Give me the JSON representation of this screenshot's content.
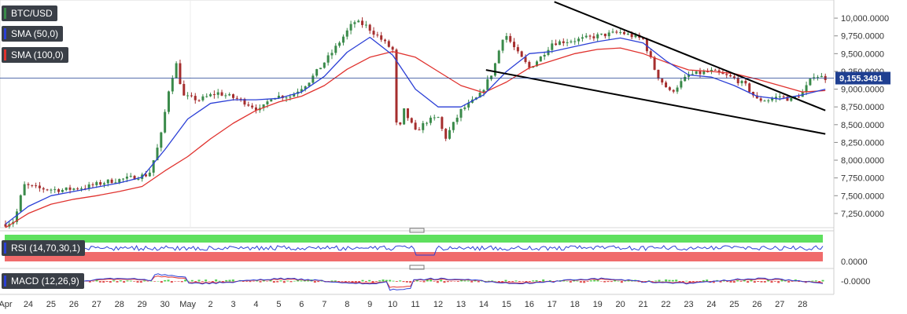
{
  "chart_data": {
    "type": "candlestick",
    "symbol": "BTC/USD",
    "current_price": "9,155.3491",
    "y_ticks": [
      "10,000.0000",
      "9,750.0000",
      "9,500.0000",
      "9,250.0000",
      "9,000.0000",
      "8,750.0000",
      "8,500.0000",
      "8,250.0000",
      "8,000.0000",
      "7,750.0000",
      "7,500.0000",
      "7,250.0000"
    ],
    "y_tick_values": [
      10000,
      9750,
      9500,
      9250,
      9000,
      8750,
      8500,
      8250,
      8000,
      7750,
      7500,
      7250
    ],
    "ylim": [
      7050,
      10200
    ],
    "x_ticks": [
      "Apr",
      "24",
      "25",
      "26",
      "27",
      "28",
      "29",
      "30",
      "May",
      "2",
      "3",
      "4",
      "5",
      "6",
      "7",
      "8",
      "9",
      "10",
      "11",
      "12",
      "13",
      "14",
      "15",
      "16",
      "17",
      "18",
      "19",
      "20",
      "21",
      "22",
      "23",
      "24",
      "25",
      "26",
      "27",
      "28"
    ],
    "price_path": [
      [
        0,
        7100
      ],
      [
        0.4,
        7150
      ],
      [
        0.8,
        7650
      ],
      [
        1.5,
        7600
      ],
      [
        2.5,
        7580
      ],
      [
        3.5,
        7620
      ],
      [
        4.5,
        7700
      ],
      [
        5.5,
        7750
      ],
      [
        6.3,
        7800
      ],
      [
        6.8,
        8300
      ],
      [
        7.2,
        9050
      ],
      [
        7.5,
        9350
      ],
      [
        7.8,
        8900
      ],
      [
        8.5,
        8850
      ],
      [
        9.3,
        8950
      ],
      [
        10.3,
        8850
      ],
      [
        11.2,
        8700
      ],
      [
        11.7,
        8900
      ],
      [
        12.5,
        8900
      ],
      [
        13.3,
        9100
      ],
      [
        14.3,
        9500
      ],
      [
        15.3,
        9950
      ],
      [
        15.8,
        9900
      ],
      [
        16.5,
        9700
      ],
      [
        17.0,
        9550
      ],
      [
        17.2,
        8300
      ],
      [
        17.5,
        8700
      ],
      [
        18.0,
        8400
      ],
      [
        18.5,
        8550
      ],
      [
        19.0,
        8600
      ],
      [
        19.3,
        8300
      ],
      [
        20.0,
        8700
      ],
      [
        20.8,
        8900
      ],
      [
        21.4,
        9250
      ],
      [
        21.9,
        9800
      ],
      [
        22.5,
        9500
      ],
      [
        23.0,
        9300
      ],
      [
        23.5,
        9450
      ],
      [
        24.0,
        9650
      ],
      [
        25.2,
        9700
      ],
      [
        26.0,
        9750
      ],
      [
        27.0,
        9800
      ],
      [
        28.0,
        9700
      ],
      [
        28.6,
        9200
      ],
      [
        29.2,
        8950
      ],
      [
        30.0,
        9200
      ],
      [
        31.0,
        9250
      ],
      [
        32.0,
        9150
      ],
      [
        32.5,
        9050
      ],
      [
        33.0,
        8850
      ],
      [
        33.5,
        8850
      ],
      [
        34.0,
        8900
      ],
      [
        34.5,
        8850
      ],
      [
        35.0,
        8950
      ],
      [
        35.5,
        9200
      ],
      [
        36.0,
        9155
      ]
    ],
    "sma_50": [
      [
        0,
        7100
      ],
      [
        1,
        7350
      ],
      [
        2,
        7500
      ],
      [
        3,
        7560
      ],
      [
        4,
        7620
      ],
      [
        5,
        7680
      ],
      [
        6,
        7760
      ],
      [
        7,
        8150
      ],
      [
        8,
        8580
      ],
      [
        9,
        8800
      ],
      [
        10,
        8850
      ],
      [
        11,
        8850
      ],
      [
        12,
        8870
      ],
      [
        13,
        8960
      ],
      [
        14,
        9180
      ],
      [
        15,
        9520
      ],
      [
        16,
        9730
      ],
      [
        17,
        9480
      ],
      [
        18,
        9000
      ],
      [
        19,
        8750
      ],
      [
        20,
        8750
      ],
      [
        21,
        8920
      ],
      [
        22,
        9250
      ],
      [
        23,
        9500
      ],
      [
        24,
        9530
      ],
      [
        25,
        9600
      ],
      [
        26,
        9670
      ],
      [
        27,
        9720
      ],
      [
        28,
        9650
      ],
      [
        29,
        9400
      ],
      [
        30,
        9200
      ],
      [
        31,
        9170
      ],
      [
        32,
        9050
      ],
      [
        33,
        8900
      ],
      [
        34,
        8860
      ],
      [
        35,
        8920
      ],
      [
        36,
        9000
      ]
    ],
    "sma_100": [
      [
        0,
        7050
      ],
      [
        1,
        7250
      ],
      [
        2,
        7380
      ],
      [
        3,
        7450
      ],
      [
        4,
        7500
      ],
      [
        5,
        7560
      ],
      [
        6,
        7630
      ],
      [
        7,
        7850
      ],
      [
        8,
        8050
      ],
      [
        9,
        8300
      ],
      [
        10,
        8520
      ],
      [
        11,
        8700
      ],
      [
        12,
        8820
      ],
      [
        13,
        8900
      ],
      [
        14,
        9050
      ],
      [
        15,
        9280
      ],
      [
        16,
        9450
      ],
      [
        17,
        9530
      ],
      [
        18,
        9450
      ],
      [
        19,
        9250
      ],
      [
        20,
        9050
      ],
      [
        21,
        8950
      ],
      [
        22,
        9100
      ],
      [
        23,
        9300
      ],
      [
        24,
        9400
      ],
      [
        25,
        9500
      ],
      [
        26,
        9560
      ],
      [
        27,
        9580
      ],
      [
        28,
        9500
      ],
      [
        29,
        9380
      ],
      [
        30,
        9270
      ],
      [
        31,
        9250
      ],
      [
        32,
        9220
      ],
      [
        33,
        9140
      ],
      [
        34,
        9050
      ],
      [
        35,
        8960
      ],
      [
        36,
        8980
      ]
    ],
    "trend_upper": [
      [
        24.1,
        10230
      ],
      [
        36.0,
        8700
      ]
    ],
    "trend_lower": [
      [
        21.1,
        9270
      ],
      [
        36.0,
        8370
      ]
    ]
  },
  "legend": {
    "symbol": "BTC/USD",
    "sma50": "SMA (50,0)",
    "sma100": "SMA (100,0)",
    "rsi": "RSI (14,70,30,1)",
    "macd": "MACD (12,26,9)"
  },
  "rsi_panel": {
    "tick": "0.0000",
    "level": 0.55
  },
  "macd_panel": {
    "tick": "-0.0000"
  },
  "colors": {
    "sma50": "#2b3fd6",
    "sma100": "#e0322e",
    "up": "#3a8a4a",
    "down": "#a52e2e",
    "trend": "#000000",
    "rsi_upper": "#5ee05e",
    "rsi_lower": "#f06b6b",
    "price_tag": "#1f3f91"
  }
}
